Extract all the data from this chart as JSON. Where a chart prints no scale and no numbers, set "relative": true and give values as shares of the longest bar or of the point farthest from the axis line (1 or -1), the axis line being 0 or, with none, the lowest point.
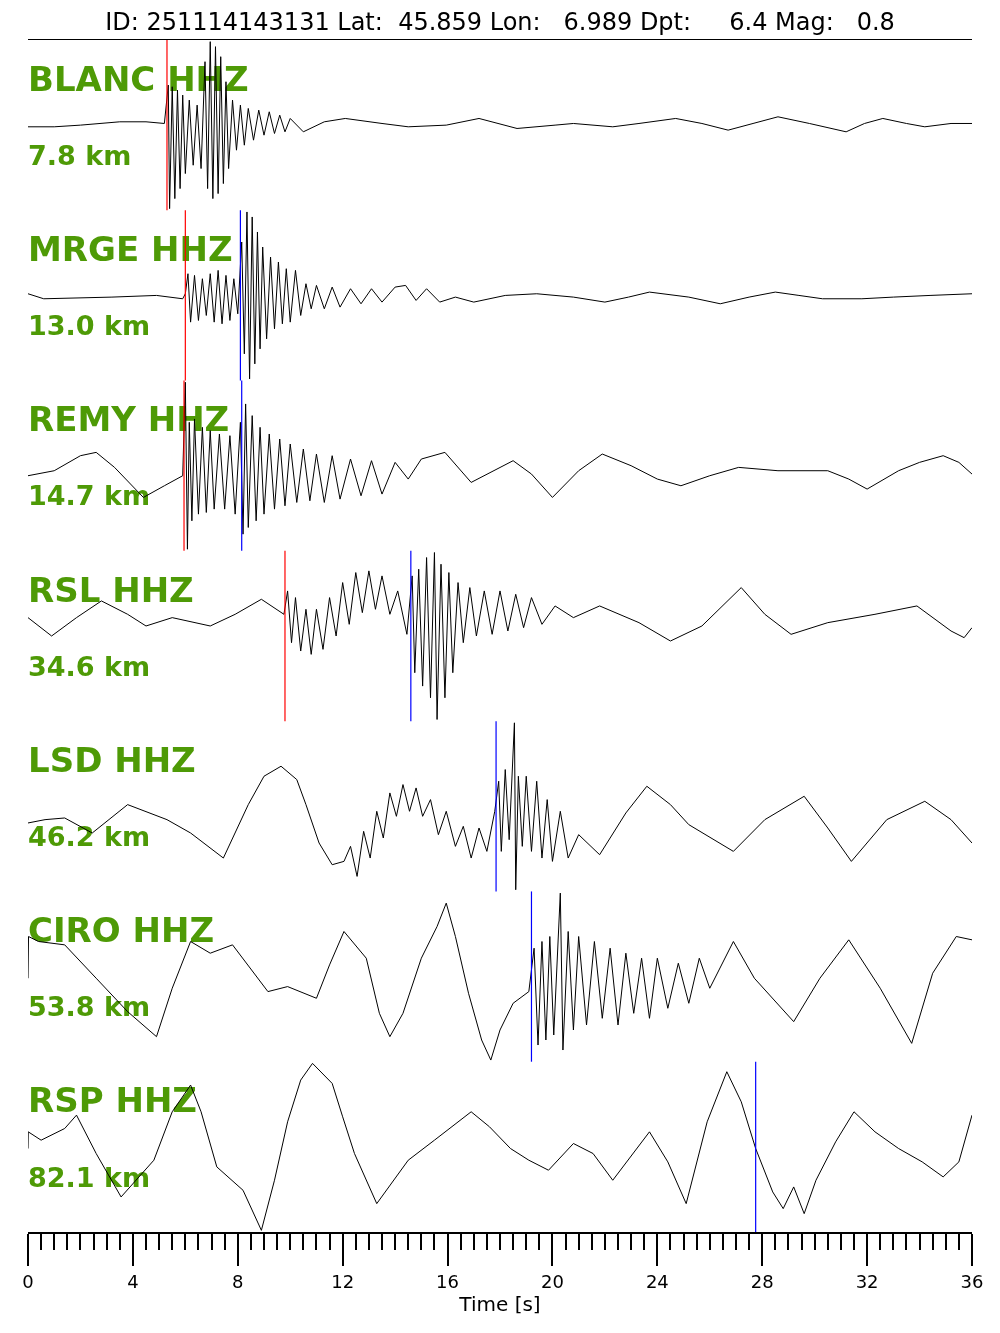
{
  "chart_data": [
    {
      "type": "line",
      "relative": true,
      "title": "ID: 251114143131 Lat:  45.859 Lon:   6.989 Dpt:     6.4 Mag:   0.8",
      "annotations": [
        "BLANC HHZ",
        "7.8 km"
      ],
      "xlim": [
        0,
        36
      ],
      "tick_labels": false,
      "ref_lines": [
        {
          "axis": "x",
          "value": 5.3,
          "color": "#ff0000"
        }
      ],
      "x": [
        0,
        1,
        2,
        3.5,
        4.5,
        5.2,
        5.35,
        5.4,
        5.5,
        5.6,
        5.7,
        5.8,
        5.9,
        6.0,
        6.15,
        6.3,
        6.45,
        6.6,
        6.75,
        6.85,
        6.95,
        7.05,
        7.15,
        7.25,
        7.35,
        7.45,
        7.55,
        7.65,
        7.8,
        7.95,
        8.1,
        8.25,
        8.4,
        8.6,
        8.8,
        9.0,
        9.2,
        9.4,
        9.6,
        9.8,
        10.0,
        10.5,
        11.3,
        12.1,
        13.5,
        14.5,
        15.95,
        17.2,
        18.65,
        20.1,
        20.8,
        22.3,
        23.3,
        24.7,
        25.7,
        26.7,
        27.65,
        28.6,
        29.8,
        31.2,
        31.9,
        32.6,
        33.5,
        34.2,
        35.2,
        36
      ],
      "series": [
        {
          "color": "#000000",
          "values": [
            0.49,
            0.49,
            0.5,
            0.52,
            0.52,
            0.51,
            0.74,
            0.0,
            0.73,
            0.06,
            0.71,
            0.12,
            0.68,
            0.21,
            0.65,
            0.26,
            0.62,
            0.24,
            0.88,
            0.12,
            1.0,
            0.06,
            0.97,
            0.09,
            0.91,
            0.15,
            0.76,
            0.24,
            0.65,
            0.35,
            0.62,
            0.38,
            0.6,
            0.41,
            0.59,
            0.44,
            0.58,
            0.45,
            0.56,
            0.46,
            0.54,
            0.46,
            0.52,
            0.54,
            0.51,
            0.49,
            0.5,
            0.54,
            0.48,
            0.5,
            0.51,
            0.49,
            0.51,
            0.54,
            0.51,
            0.47,
            0.51,
            0.55,
            0.51,
            0.46,
            0.51,
            0.54,
            0.51,
            0.49,
            0.51,
            0.51
          ]
        }
      ]
    },
    {
      "type": "line",
      "relative": true,
      "annotations": [
        "MRGE HHZ",
        "13.0 km"
      ],
      "xlim": [
        0,
        36
      ],
      "tick_labels": false,
      "ref_lines": [
        {
          "axis": "x",
          "value": 6.0,
          "color": "#ff0000"
        },
        {
          "axis": "x",
          "value": 8.1,
          "color": "#0000ff"
        }
      ],
      "x": [
        0,
        0.6,
        3.2,
        4.9,
        5.9,
        6.0,
        6.1,
        6.2,
        6.35,
        6.5,
        6.65,
        6.8,
        6.95,
        7.1,
        7.25,
        7.4,
        7.55,
        7.7,
        7.85,
        8.0,
        8.15,
        8.25,
        8.35,
        8.45,
        8.55,
        8.65,
        8.75,
        8.85,
        8.95,
        9.1,
        9.25,
        9.4,
        9.55,
        9.7,
        9.85,
        10.0,
        10.2,
        10.4,
        10.6,
        10.8,
        11.0,
        11.3,
        11.6,
        11.9,
        12.3,
        12.7,
        13.1,
        13.5,
        14.0,
        14.4,
        14.8,
        15.2,
        15.7,
        16.3,
        17.0,
        18.2,
        19.4,
        20.8,
        22.0,
        22.9,
        23.7,
        25.2,
        26.4,
        27.5,
        28.5,
        29.4,
        30.3,
        31.8,
        33.0,
        34.4,
        36
      ],
      "series": [
        {
          "color": "#000000",
          "values": [
            0.51,
            0.48,
            0.49,
            0.5,
            0.48,
            0.51,
            0.63,
            0.34,
            0.62,
            0.35,
            0.6,
            0.38,
            0.63,
            0.34,
            0.65,
            0.33,
            0.62,
            0.35,
            0.6,
            0.39,
            0.82,
            0.15,
            1.0,
            0.0,
            0.97,
            0.09,
            0.88,
            0.18,
            0.79,
            0.24,
            0.73,
            0.3,
            0.7,
            0.33,
            0.66,
            0.34,
            0.65,
            0.38,
            0.57,
            0.42,
            0.56,
            0.42,
            0.55,
            0.43,
            0.54,
            0.45,
            0.54,
            0.46,
            0.55,
            0.56,
            0.47,
            0.54,
            0.46,
            0.49,
            0.46,
            0.5,
            0.51,
            0.49,
            0.46,
            0.49,
            0.52,
            0.49,
            0.45,
            0.49,
            0.52,
            0.5,
            0.48,
            0.48,
            0.49,
            0.5,
            0.51
          ]
        }
      ]
    },
    {
      "type": "line",
      "relative": true,
      "annotations": [
        "REMY HHZ",
        "14.7 km"
      ],
      "xlim": [
        0,
        36
      ],
      "tick_labels": false,
      "ref_lines": [
        {
          "axis": "x",
          "value": 5.95,
          "color": "#ff0000"
        },
        {
          "axis": "x",
          "value": 8.15,
          "color": "#0000ff"
        }
      ],
      "x": [
        0,
        1,
        2,
        2.6,
        3.3,
        4.4,
        5.2,
        5.9,
        6.0,
        6.08,
        6.15,
        6.25,
        6.35,
        6.5,
        6.65,
        6.8,
        6.95,
        7.1,
        7.3,
        7.5,
        7.7,
        7.9,
        8.1,
        8.2,
        8.3,
        8.4,
        8.55,
        8.7,
        8.85,
        9.0,
        9.2,
        9.4,
        9.6,
        9.8,
        10.0,
        10.25,
        10.5,
        10.75,
        11.0,
        11.3,
        11.6,
        11.9,
        12.3,
        12.7,
        13.1,
        13.5,
        14.0,
        14.5,
        15.0,
        15.9,
        16.9,
        18.5,
        19.2,
        20.0,
        21.0,
        21.9,
        23.0,
        24.0,
        24.9,
        26.0,
        27.1,
        28.6,
        30.5,
        31.3,
        32.0,
        33.2,
        34.0,
        34.9,
        35.5,
        36
      ],
      "series": [
        {
          "color": "#000000",
          "values": [
            0.44,
            0.47,
            0.56,
            0.58,
            0.49,
            0.31,
            0.38,
            0.44,
            1.0,
            0.0,
            0.76,
            0.17,
            0.78,
            0.21,
            0.73,
            0.22,
            0.71,
            0.24,
            0.69,
            0.24,
            0.68,
            0.21,
            0.76,
            0.09,
            0.87,
            0.13,
            0.8,
            0.17,
            0.73,
            0.21,
            0.69,
            0.24,
            0.66,
            0.26,
            0.63,
            0.28,
            0.6,
            0.29,
            0.57,
            0.28,
            0.56,
            0.3,
            0.54,
            0.32,
            0.53,
            0.33,
            0.52,
            0.42,
            0.54,
            0.58,
            0.4,
            0.53,
            0.45,
            0.31,
            0.47,
            0.57,
            0.5,
            0.42,
            0.38,
            0.44,
            0.49,
            0.47,
            0.47,
            0.42,
            0.36,
            0.47,
            0.52,
            0.56,
            0.52,
            0.45
          ]
        }
      ]
    },
    {
      "type": "line",
      "relative": true,
      "annotations": [
        "RSL HHZ",
        "34.6 km"
      ],
      "xlim": [
        0,
        36
      ],
      "tick_labels": false,
      "ref_lines": [
        {
          "axis": "x",
          "value": 9.8,
          "color": "#ff0000"
        },
        {
          "axis": "x",
          "value": 14.6,
          "color": "#0000ff"
        }
      ],
      "x": [
        0,
        0.9,
        1.85,
        2.8,
        3.8,
        4.5,
        5.5,
        6.95,
        7.9,
        8.9,
        9.76,
        9.9,
        10.05,
        10.2,
        10.4,
        10.6,
        10.8,
        11.0,
        11.25,
        11.5,
        11.75,
        12.0,
        12.25,
        12.5,
        12.75,
        13.0,
        13.25,
        13.5,
        13.8,
        14.1,
        14.45,
        14.65,
        14.75,
        14.9,
        15.05,
        15.2,
        15.35,
        15.5,
        15.6,
        15.75,
        15.9,
        16.05,
        16.2,
        16.4,
        16.6,
        16.85,
        17.1,
        17.4,
        17.7,
        18.0,
        18.3,
        18.6,
        18.9,
        19.2,
        19.6,
        20.1,
        20.8,
        21.8,
        23.3,
        24.5,
        25.7,
        27.2,
        28.1,
        29.1,
        30.5,
        32.3,
        33.9,
        35.2,
        35.7,
        36
      ],
      "series": [
        {
          "color": "#000000",
          "values": [
            0.61,
            0.5,
            0.61,
            0.71,
            0.63,
            0.56,
            0.61,
            0.56,
            0.63,
            0.72,
            0.63,
            0.77,
            0.46,
            0.73,
            0.41,
            0.66,
            0.39,
            0.66,
            0.42,
            0.73,
            0.5,
            0.82,
            0.57,
            0.88,
            0.64,
            0.89,
            0.66,
            0.86,
            0.63,
            0.77,
            0.51,
            0.86,
            0.28,
            0.9,
            0.2,
            0.97,
            0.13,
            1.0,
            0.0,
            0.93,
            0.13,
            0.88,
            0.28,
            0.82,
            0.46,
            0.79,
            0.5,
            0.77,
            0.51,
            0.77,
            0.53,
            0.75,
            0.55,
            0.73,
            0.57,
            0.68,
            0.61,
            0.68,
            0.58,
            0.47,
            0.56,
            0.79,
            0.63,
            0.51,
            0.58,
            0.63,
            0.68,
            0.53,
            0.49,
            0.55
          ]
        }
      ]
    },
    {
      "type": "line",
      "relative": true,
      "annotations": [
        "LSD HHZ",
        "46.2 km"
      ],
      "xlim": [
        0,
        36
      ],
      "tick_labels": false,
      "ref_lines": [
        {
          "axis": "x",
          "value": 17.85,
          "color": "#0000ff"
        }
      ],
      "x": [
        0,
        0.65,
        1.4,
        2.45,
        3.8,
        5.3,
        6.2,
        7.45,
        8.4,
        9.0,
        9.65,
        10.25,
        10.6,
        11.1,
        11.6,
        12.05,
        12.3,
        12.55,
        12.8,
        13.05,
        13.3,
        13.55,
        13.8,
        14.05,
        14.3,
        14.55,
        14.8,
        15.05,
        15.35,
        15.65,
        15.95,
        16.3,
        16.6,
        16.9,
        17.2,
        17.5,
        17.8,
        17.95,
        18.05,
        18.2,
        18.35,
        18.55,
        18.6,
        18.7,
        18.85,
        19.0,
        19.2,
        19.4,
        19.6,
        19.8,
        20.0,
        20.3,
        20.6,
        21.0,
        21.8,
        22.8,
        23.6,
        24.5,
        25.2,
        26.9,
        28.1,
        29.6,
        30.5,
        31.4,
        32.75,
        34.2,
        35.2,
        36
      ],
      "series": [
        {
          "color": "#000000",
          "values": [
            0.4,
            0.42,
            0.43,
            0.34,
            0.51,
            0.42,
            0.34,
            0.19,
            0.51,
            0.68,
            0.74,
            0.66,
            0.51,
            0.28,
            0.15,
            0.17,
            0.26,
            0.08,
            0.35,
            0.19,
            0.47,
            0.31,
            0.58,
            0.44,
            0.63,
            0.47,
            0.61,
            0.44,
            0.54,
            0.33,
            0.47,
            0.26,
            0.38,
            0.19,
            0.37,
            0.23,
            0.47,
            0.65,
            0.23,
            0.72,
            0.3,
            1.0,
            0.0,
            0.68,
            0.26,
            0.68,
            0.23,
            0.65,
            0.19,
            0.54,
            0.17,
            0.47,
            0.19,
            0.33,
            0.21,
            0.46,
            0.62,
            0.51,
            0.39,
            0.23,
            0.42,
            0.56,
            0.37,
            0.17,
            0.42,
            0.53,
            0.42,
            0.28
          ]
        }
      ]
    },
    {
      "type": "line",
      "relative": true,
      "annotations": [
        "CIRO HHZ",
        "53.8 km"
      ],
      "xlim": [
        0,
        36
      ],
      "tick_labels": false,
      "ref_lines": [
        {
          "axis": "x",
          "value": 19.2,
          "color": "#0000ff"
        }
      ],
      "x": [
        0,
        0.02,
        0.4,
        1.4,
        2.6,
        3.8,
        4.9,
        5.5,
        6.2,
        6.95,
        7.8,
        9.15,
        9.9,
        11.0,
        11.5,
        12.05,
        12.9,
        13.4,
        13.8,
        14.3,
        15.0,
        15.6,
        15.95,
        16.3,
        16.8,
        17.3,
        17.65,
        18.0,
        18.5,
        19.1,
        19.3,
        19.45,
        19.6,
        19.75,
        19.9,
        20.05,
        20.3,
        20.4,
        20.6,
        20.8,
        21.0,
        21.3,
        21.6,
        21.9,
        22.2,
        22.5,
        22.8,
        23.1,
        23.4,
        23.7,
        24.0,
        24.4,
        24.8,
        25.2,
        25.6,
        26.0,
        26.9,
        27.7,
        29.2,
        30.2,
        31.3,
        32.5,
        33.7,
        34.5,
        35.4,
        36
      ],
      "series": [
        {
          "color": "#000000",
          "values": [
            0.49,
            0.74,
            0.71,
            0.69,
            0.49,
            0.29,
            0.14,
            0.43,
            0.71,
            0.64,
            0.69,
            0.41,
            0.44,
            0.37,
            0.57,
            0.77,
            0.61,
            0.28,
            0.14,
            0.28,
            0.61,
            0.8,
            0.94,
            0.74,
            0.4,
            0.12,
            0.0,
            0.18,
            0.34,
            0.41,
            0.67,
            0.09,
            0.71,
            0.12,
            0.74,
            0.15,
            1.0,
            0.06,
            0.77,
            0.18,
            0.74,
            0.21,
            0.71,
            0.25,
            0.67,
            0.21,
            0.64,
            0.28,
            0.61,
            0.25,
            0.61,
            0.31,
            0.58,
            0.34,
            0.61,
            0.43,
            0.71,
            0.49,
            0.23,
            0.49,
            0.72,
            0.43,
            0.1,
            0.52,
            0.74,
            0.72
          ]
        }
      ]
    },
    {
      "type": "line",
      "relative": true,
      "annotations": [
        "RSP HHZ",
        "82.1 km"
      ],
      "xlim": [
        0,
        36
      ],
      "tick_labels": "x",
      "xlabel": "Time [s]",
      "ref_lines": [
        {
          "axis": "x",
          "value": 27.75,
          "color": "#0000ff"
        }
      ],
      "xticks": [
        0,
        {
          "value": 0.5,
          "label": null
        },
        {
          "value": 1,
          "label": null
        },
        {
          "value": 1.5,
          "label": null
        },
        {
          "value": 2,
          "label": null
        },
        {
          "value": 2.5,
          "label": null
        },
        {
          "value": 3,
          "label": null
        },
        {
          "value": 3.5,
          "label": null
        },
        4,
        {
          "value": 4.5,
          "label": null
        },
        {
          "value": 5,
          "label": null
        },
        {
          "value": 5.5,
          "label": null
        },
        {
          "value": 6,
          "label": null
        },
        {
          "value": 6.5,
          "label": null
        },
        {
          "value": 7,
          "label": null
        },
        {
          "value": 7.5,
          "label": null
        },
        8,
        {
          "value": 8.5,
          "label": null
        },
        {
          "value": 9,
          "label": null
        },
        {
          "value": 9.5,
          "label": null
        },
        {
          "value": 10,
          "label": null
        },
        {
          "value": 10.5,
          "label": null
        },
        {
          "value": 11,
          "label": null
        },
        {
          "value": 11.5,
          "label": null
        },
        12,
        {
          "value": 12.5,
          "label": null
        },
        {
          "value": 13,
          "label": null
        },
        {
          "value": 13.5,
          "label": null
        },
        {
          "value": 14,
          "label": null
        },
        {
          "value": 14.5,
          "label": null
        },
        {
          "value": 15,
          "label": null
        },
        {
          "value": 15.5,
          "label": null
        },
        16,
        {
          "value": 16.5,
          "label": null
        },
        {
          "value": 17,
          "label": null
        },
        {
          "value": 17.5,
          "label": null
        },
        {
          "value": 18,
          "label": null
        },
        {
          "value": 18.5,
          "label": null
        },
        {
          "value": 19,
          "label": null
        },
        {
          "value": 19.5,
          "label": null
        },
        20,
        {
          "value": 20.5,
          "label": null
        },
        {
          "value": 21,
          "label": null
        },
        {
          "value": 21.5,
          "label": null
        },
        {
          "value": 22,
          "label": null
        },
        {
          "value": 22.5,
          "label": null
        },
        {
          "value": 23,
          "label": null
        },
        {
          "value": 23.5,
          "label": null
        },
        24,
        {
          "value": 24.5,
          "label": null
        },
        {
          "value": 25,
          "label": null
        },
        {
          "value": 25.5,
          "label": null
        },
        {
          "value": 26,
          "label": null
        },
        {
          "value": 26.5,
          "label": null
        },
        {
          "value": 27,
          "label": null
        },
        {
          "value": 27.5,
          "label": null
        },
        28,
        {
          "value": 28.5,
          "label": null
        },
        {
          "value": 29,
          "label": null
        },
        {
          "value": 29.5,
          "label": null
        },
        {
          "value": 30,
          "label": null
        },
        {
          "value": 30.5,
          "label": null
        },
        {
          "value": 31,
          "label": null
        },
        {
          "value": 31.5,
          "label": null
        },
        32,
        {
          "value": 32.5,
          "label": null
        },
        {
          "value": 33,
          "label": null
        },
        {
          "value": 33.5,
          "label": null
        },
        {
          "value": 34,
          "label": null
        },
        {
          "value": 34.5,
          "label": null
        },
        {
          "value": 35,
          "label": null
        },
        {
          "value": 35.5,
          "label": null
        },
        36
      ],
      "x": [
        0,
        0.01,
        0.5,
        1.4,
        1.85,
        2.6,
        3.55,
        4.8,
        5.5,
        6.2,
        6.6,
        7.2,
        8.2,
        8.9,
        9.4,
        9.9,
        10.4,
        10.85,
        11.6,
        12.0,
        12.45,
        13.3,
        14.5,
        15.5,
        16.9,
        17.6,
        18.4,
        19.1,
        19.85,
        20.8,
        21.55,
        22.3,
        23.7,
        24.4,
        25.1,
        25.9,
        26.65,
        27.2,
        27.75,
        28.4,
        28.8,
        29.2,
        29.6,
        30.05,
        30.8,
        31.5,
        32.3,
        33.2,
        34.1,
        34.9,
        35.5,
        36
      ],
      "series": [
        {
          "color": "#000000",
          "values": [
            0.49,
            0.59,
            0.54,
            0.61,
            0.69,
            0.46,
            0.2,
            0.42,
            0.71,
            0.87,
            0.71,
            0.38,
            0.24,
            0.0,
            0.3,
            0.65,
            0.9,
            1.0,
            0.88,
            0.68,
            0.46,
            0.16,
            0.42,
            0.54,
            0.71,
            0.62,
            0.49,
            0.42,
            0.36,
            0.52,
            0.46,
            0.3,
            0.59,
            0.41,
            0.16,
            0.65,
            0.95,
            0.77,
            0.49,
            0.23,
            0.13,
            0.26,
            0.1,
            0.3,
            0.53,
            0.71,
            0.59,
            0.49,
            0.41,
            0.32,
            0.41,
            0.69
          ]
        }
      ]
    }
  ]
}
